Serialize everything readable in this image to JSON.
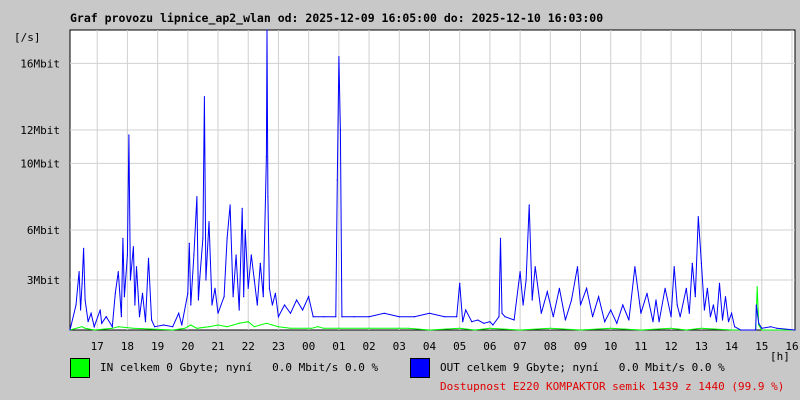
{
  "chart_data": {
    "type": "line",
    "title": "Graf provozu lipnice_ap2_wlan od: 2025-12-09 16:05:00 do: 2025-12-10 16:03:00",
    "ylabel": "[/s]",
    "xlabel": "[h]",
    "x_ticks": [
      "17",
      "18",
      "19",
      "20",
      "21",
      "22",
      "23",
      "00",
      "01",
      "02",
      "03",
      "04",
      "05",
      "06",
      "07",
      "08",
      "09",
      "10",
      "11",
      "12",
      "13",
      "14",
      "15",
      "16"
    ],
    "y_ticks": [
      {
        "value": 3,
        "label": "3Mbit"
      },
      {
        "value": 6,
        "label": "6Mbit"
      },
      {
        "value": 10,
        "label": "10Mbit"
      },
      {
        "value": 12,
        "label": "12Mbit"
      },
      {
        "value": 16,
        "label": "16Mbit"
      }
    ],
    "ylim": [
      0,
      18
    ],
    "xlim": [
      16.1,
      40.1
    ],
    "grid": true,
    "series": [
      {
        "name": "IN",
        "color": "#00ff00",
        "points": [
          [
            16.1,
            0
          ],
          [
            16.5,
            0.2
          ],
          [
            16.6,
            0.1
          ],
          [
            16.9,
            0
          ],
          [
            17.5,
            0.1
          ],
          [
            17.7,
            0.2
          ],
          [
            18.2,
            0.1
          ],
          [
            19.5,
            0
          ],
          [
            19.9,
            0.1
          ],
          [
            20.1,
            0.3
          ],
          [
            20.3,
            0.1
          ],
          [
            20.7,
            0.2
          ],
          [
            21.0,
            0.3
          ],
          [
            21.3,
            0.2
          ],
          [
            21.7,
            0.4
          ],
          [
            22.0,
            0.5
          ],
          [
            22.2,
            0.2
          ],
          [
            22.6,
            0.4
          ],
          [
            23.0,
            0.2
          ],
          [
            23.4,
            0.1
          ],
          [
            24.1,
            0.1
          ],
          [
            24.3,
            0.2
          ],
          [
            24.5,
            0.1
          ],
          [
            25.0,
            0.1
          ],
          [
            26.0,
            0.1
          ],
          [
            27.0,
            0.1
          ],
          [
            27.3,
            0.1
          ],
          [
            28.0,
            0
          ],
          [
            29.0,
            0.1
          ],
          [
            29.5,
            0
          ],
          [
            30.0,
            0.1
          ],
          [
            31.0,
            0
          ],
          [
            32.0,
            0.1
          ],
          [
            33.0,
            0
          ],
          [
            34.0,
            0.1
          ],
          [
            35.0,
            0
          ],
          [
            36.0,
            0.1
          ],
          [
            36.5,
            0
          ],
          [
            37.0,
            0.1
          ],
          [
            38.0,
            0
          ],
          [
            38.8,
            0
          ],
          [
            38.85,
            2.6
          ],
          [
            38.9,
            0.3
          ],
          [
            39.0,
            0
          ],
          [
            40.1,
            0
          ]
        ]
      },
      {
        "name": "OUT",
        "color": "#0000ff",
        "points": [
          [
            16.1,
            0
          ],
          [
            16.3,
            1.5
          ],
          [
            16.4,
            3.5
          ],
          [
            16.45,
            1.2
          ],
          [
            16.5,
            2.8
          ],
          [
            16.55,
            4.9
          ],
          [
            16.6,
            1.8
          ],
          [
            16.7,
            0.5
          ],
          [
            16.8,
            1.0
          ],
          [
            16.9,
            0.2
          ],
          [
            17.1,
            1.2
          ],
          [
            17.15,
            0.4
          ],
          [
            17.3,
            0.8
          ],
          [
            17.5,
            0.2
          ],
          [
            17.6,
            2.2
          ],
          [
            17.7,
            3.5
          ],
          [
            17.8,
            0.8
          ],
          [
            17.85,
            5.5
          ],
          [
            17.9,
            2.0
          ],
          [
            18.0,
            4.5
          ],
          [
            18.05,
            11.7
          ],
          [
            18.1,
            3.0
          ],
          [
            18.2,
            5.0
          ],
          [
            18.25,
            1.5
          ],
          [
            18.3,
            3.8
          ],
          [
            18.4,
            0.8
          ],
          [
            18.5,
            2.2
          ],
          [
            18.6,
            0.5
          ],
          [
            18.7,
            4.3
          ],
          [
            18.8,
            0.6
          ],
          [
            18.9,
            0.2
          ],
          [
            19.2,
            0.3
          ],
          [
            19.5,
            0.2
          ],
          [
            19.7,
            1.0
          ],
          [
            19.8,
            0.3
          ],
          [
            20.0,
            2.2
          ],
          [
            20.05,
            5.2
          ],
          [
            20.1,
            1.5
          ],
          [
            20.2,
            4.5
          ],
          [
            20.3,
            8.0
          ],
          [
            20.35,
            1.8
          ],
          [
            20.4,
            3.2
          ],
          [
            20.5,
            5.5
          ],
          [
            20.55,
            14.0
          ],
          [
            20.6,
            3.0
          ],
          [
            20.7,
            6.5
          ],
          [
            20.8,
            1.5
          ],
          [
            20.9,
            2.5
          ],
          [
            21.0,
            1.0
          ],
          [
            21.2,
            2.0
          ],
          [
            21.3,
            5.5
          ],
          [
            21.4,
            7.5
          ],
          [
            21.5,
            2.0
          ],
          [
            21.6,
            4.5
          ],
          [
            21.7,
            1.2
          ],
          [
            21.8,
            7.3
          ],
          [
            21.85,
            2.0
          ],
          [
            21.9,
            6.0
          ],
          [
            22.0,
            2.5
          ],
          [
            22.1,
            4.5
          ],
          [
            22.2,
            3.0
          ],
          [
            22.3,
            1.5
          ],
          [
            22.4,
            4.0
          ],
          [
            22.5,
            2.0
          ],
          [
            22.6,
            10.4
          ],
          [
            22.62,
            18.0
          ],
          [
            22.65,
            8.0
          ],
          [
            22.7,
            2.5
          ],
          [
            22.8,
            1.5
          ],
          [
            22.9,
            2.2
          ],
          [
            23.0,
            0.8
          ],
          [
            23.2,
            1.5
          ],
          [
            23.4,
            1.0
          ],
          [
            23.6,
            1.8
          ],
          [
            23.8,
            1.2
          ],
          [
            24.0,
            2.0
          ],
          [
            24.15,
            0.8
          ],
          [
            24.5,
            0.8
          ],
          [
            24.9,
            0.8
          ],
          [
            24.95,
            9.0
          ],
          [
            25.0,
            16.4
          ],
          [
            25.05,
            12.0
          ],
          [
            25.1,
            0.8
          ],
          [
            25.5,
            0.8
          ],
          [
            26.0,
            0.8
          ],
          [
            26.5,
            1.0
          ],
          [
            27.0,
            0.8
          ],
          [
            27.5,
            0.8
          ],
          [
            28.0,
            1.0
          ],
          [
            28.5,
            0.8
          ],
          [
            28.9,
            0.8
          ],
          [
            29.0,
            2.8
          ],
          [
            29.1,
            0.5
          ],
          [
            29.2,
            1.2
          ],
          [
            29.4,
            0.5
          ],
          [
            29.6,
            0.6
          ],
          [
            29.8,
            0.4
          ],
          [
            30.0,
            0.5
          ],
          [
            30.1,
            0.3
          ],
          [
            30.3,
            0.8
          ],
          [
            30.35,
            5.5
          ],
          [
            30.4,
            1.0
          ],
          [
            30.5,
            0.8
          ],
          [
            30.8,
            0.6
          ],
          [
            31.0,
            3.5
          ],
          [
            31.1,
            1.5
          ],
          [
            31.2,
            3.0
          ],
          [
            31.3,
            7.5
          ],
          [
            31.4,
            1.8
          ],
          [
            31.5,
            3.8
          ],
          [
            31.7,
            1.0
          ],
          [
            31.9,
            2.3
          ],
          [
            32.1,
            0.8
          ],
          [
            32.3,
            2.5
          ],
          [
            32.5,
            0.6
          ],
          [
            32.7,
            1.8
          ],
          [
            32.9,
            3.8
          ],
          [
            33.0,
            1.5
          ],
          [
            33.2,
            2.5
          ],
          [
            33.4,
            0.8
          ],
          [
            33.6,
            2.0
          ],
          [
            33.8,
            0.5
          ],
          [
            34.0,
            1.2
          ],
          [
            34.2,
            0.4
          ],
          [
            34.4,
            1.5
          ],
          [
            34.6,
            0.6
          ],
          [
            34.8,
            3.8
          ],
          [
            35.0,
            1.0
          ],
          [
            35.2,
            2.2
          ],
          [
            35.4,
            0.5
          ],
          [
            35.5,
            1.8
          ],
          [
            35.6,
            0.5
          ],
          [
            35.8,
            2.5
          ],
          [
            36.0,
            0.8
          ],
          [
            36.1,
            3.8
          ],
          [
            36.2,
            1.5
          ],
          [
            36.3,
            0.8
          ],
          [
            36.5,
            2.5
          ],
          [
            36.6,
            1.0
          ],
          [
            36.7,
            4.0
          ],
          [
            36.8,
            2.0
          ],
          [
            36.9,
            6.8
          ],
          [
            37.0,
            4.0
          ],
          [
            37.1,
            1.2
          ],
          [
            37.2,
            2.5
          ],
          [
            37.3,
            0.8
          ],
          [
            37.4,
            1.5
          ],
          [
            37.5,
            0.5
          ],
          [
            37.6,
            2.8
          ],
          [
            37.7,
            0.6
          ],
          [
            37.8,
            2.0
          ],
          [
            37.9,
            0.5
          ],
          [
            38.0,
            1.0
          ],
          [
            38.1,
            0.2
          ],
          [
            38.3,
            0
          ],
          [
            38.8,
            0
          ],
          [
            38.82,
            1.5
          ],
          [
            38.9,
            0.4
          ],
          [
            39.0,
            0.1
          ],
          [
            39.3,
            0.2
          ],
          [
            39.5,
            0.1
          ],
          [
            40.1,
            0
          ]
        ]
      }
    ]
  },
  "legend": {
    "in_text": "IN celkem 0 Gbyte; nyní   0.0 Mbit/s 0.0 %",
    "out_text": "OUT celkem 9 Gbyte; nyní   0.0 Mbit/s 0.0 %",
    "in_color": "#00ff00",
    "out_color": "#0000ff"
  },
  "availability": {
    "text": "Dostupnost E220 KOMPAKTOR semik 1439 z 1440 (99.9 %)",
    "color": "#e00000"
  },
  "colors": {
    "plot_bg": "#ffffff",
    "page_bg": "#c8c8c8",
    "grid": "#d0d0d0"
  }
}
